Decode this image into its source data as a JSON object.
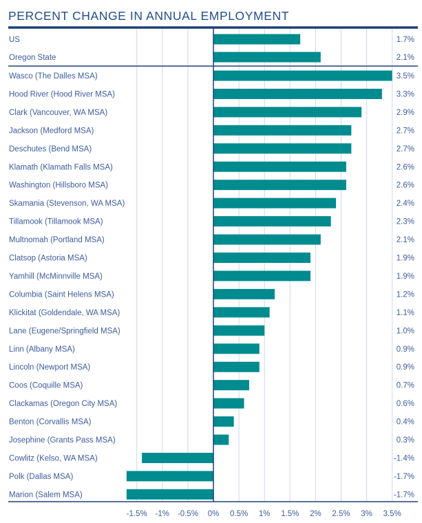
{
  "chart_data": {
    "type": "bar",
    "orientation": "horizontal",
    "title": "PERCENT CHANGE IN ANNUAL EMPLOYMENT",
    "xlabel": "",
    "ylabel": "",
    "xlim": [
      -2.0,
      3.5
    ],
    "grid": true,
    "legend": "none",
    "groups": [
      {
        "name": "summary",
        "categories": [
          "US",
          "Oregon State"
        ],
        "values": [
          1.7,
          2.1
        ],
        "value_labels": [
          "1.7%",
          "2.1%"
        ]
      },
      {
        "name": "areas",
        "categories": [
          "Wasco (The Dalles MSA)",
          "Hood River (Hood River MSA)",
          "Clark (Vancouver, WA MSA)",
          "Jackson (Medford MSA)",
          "Deschutes (Bend MSA)",
          "Klamath (Klamath Falls MSA)",
          "Washington (Hillsboro MSA)",
          "Skamania (Stevenson, WA MSA)",
          "Tillamook (Tillamook MSA)",
          "Multnomah (Portland MSA)",
          "Clatsop (Astoria MSA)",
          "Yamhill (McMinnville MSA)",
          "Columbia (Saint Helens MSA)",
          "Klickitat (Goldendale, WA MSA)",
          "Lane (Eugene/Springfield MSA)",
          "Linn (Albany MSA)",
          "Lincoln (Newport MSA)",
          "Coos (Coquille MSA)",
          "Clackamas (Oregon City MSA)",
          "Benton (Corvallis MSA)",
          "Josephine (Grants Pass MSA)",
          "Cowlitz (Kelso, WA MSA)",
          "Polk (Dallas MSA)",
          "Marion (Salem MSA)"
        ],
        "values": [
          3.5,
          3.3,
          2.9,
          2.7,
          2.7,
          2.6,
          2.6,
          2.4,
          2.3,
          2.1,
          1.9,
          1.9,
          1.2,
          1.1,
          1.0,
          0.9,
          0.9,
          0.7,
          0.6,
          0.4,
          0.3,
          -1.4,
          -1.7,
          -1.7
        ],
        "value_labels": [
          "3.5%",
          "3.3%",
          "2.9%",
          "2.7%",
          "2.7%",
          "2.6%",
          "2.6%",
          "2.4%",
          "2.3%",
          "2.1%",
          "1.9%",
          "1.9%",
          "1.2%",
          "1.1%",
          "1.0%",
          "0.9%",
          "0.9%",
          "0.7%",
          "0.6%",
          "0.4%",
          "0.3%",
          "-1.4%",
          "-1.7%",
          "-1.7%"
        ]
      }
    ],
    "x_ticks": [
      -1.5,
      -1,
      -0.5,
      0,
      0.5,
      1,
      1.5,
      2,
      2.5,
      3,
      3.5
    ],
    "x_tick_labels": [
      "-1.5%",
      "-1%",
      "-0.5%",
      "0%",
      "0.5%",
      "1%",
      "1.5%",
      "2%",
      "2.5%",
      "3%",
      "3.5%"
    ],
    "colors": {
      "bar": "#008b8f",
      "text": "#3d5c9e",
      "title": "#1f4e8c",
      "rule": "#1f3f7a",
      "grid": "#cdd7ea"
    }
  }
}
